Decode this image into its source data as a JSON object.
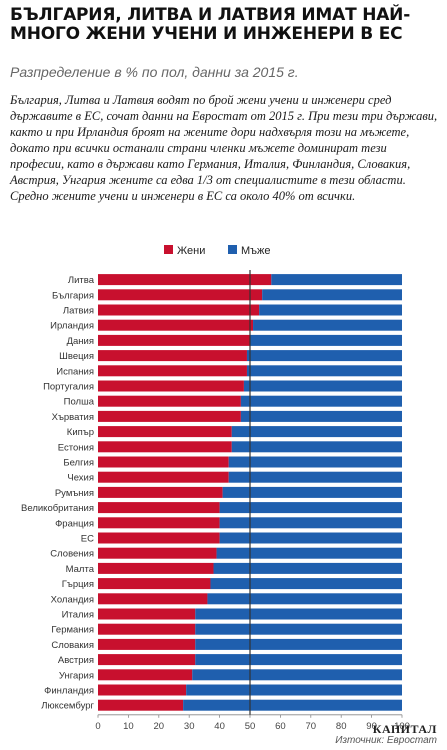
{
  "header": {
    "title": "БЪЛГАРИЯ, ЛИТВА И ЛАТВИЯ ИМАТ НАЙ-МНОГО ЖЕНИ УЧЕНИ И ИНЖЕНЕРИ В ЕС",
    "subtitle": "Разпределение в % по пол, данни за 2015 г.",
    "body": "България, Литва и Латвия водят по брой жени учени и инженери сред държавите в ЕС, сочат данни на Евростат от 2015 г. При тези три държави, както и при Ирландия броят на жените дори надхвърля този на мъжете, докато при всички останали страни членки мъжете доминират тези професии, като в държави като Германия, Италия, Финландия, Словакия, Австрия, Унгария жените са едва 1/3 от специалистите в тези области. Средно жените учени и инженери в ЕС са около 40% от всички."
  },
  "footer": {
    "brand": "КАПИТАЛ",
    "source": "Източник: Евростат"
  },
  "colors": {
    "women": "#c8102e",
    "men": "#1f5fae",
    "divider": "#333333",
    "grid": "#cccccc"
  },
  "chart_data": {
    "type": "bar",
    "orientation": "horizontal",
    "stacked": true,
    "xlim": [
      0,
      100
    ],
    "xticks": [
      0,
      10,
      20,
      30,
      40,
      50,
      60,
      70,
      80,
      90,
      100
    ],
    "reference_line": 50,
    "legend_placement": "top-center",
    "categories": [
      "Литва",
      "България",
      "Латвия",
      "Ирландия",
      "Дания",
      "Швеция",
      "Испания",
      "Португалия",
      "Полша",
      "Хърватия",
      "Кипър",
      "Естония",
      "Белгия",
      "Чехия",
      "Румъния",
      "Великобритания",
      "Франция",
      "ЕС",
      "Словения",
      "Малта",
      "Гърция",
      "Холандия",
      "Италия",
      "Германия",
      "Словакия",
      "Австрия",
      "Унгария",
      "Финландия",
      "Люксембург"
    ],
    "series": [
      {
        "name": "Жени",
        "values": [
          57,
          54,
          53,
          51,
          50,
          49,
          49,
          48,
          47,
          47,
          44,
          44,
          43,
          43,
          41,
          40,
          40,
          40,
          39,
          38,
          37,
          36,
          32,
          32,
          32,
          32,
          31,
          29,
          28
        ]
      },
      {
        "name": "Мъже",
        "values": [
          43,
          46,
          47,
          49,
          50,
          51,
          51,
          52,
          53,
          53,
          56,
          56,
          57,
          57,
          59,
          60,
          60,
          60,
          61,
          62,
          63,
          64,
          68,
          68,
          68,
          68,
          69,
          71,
          72
        ]
      }
    ]
  }
}
